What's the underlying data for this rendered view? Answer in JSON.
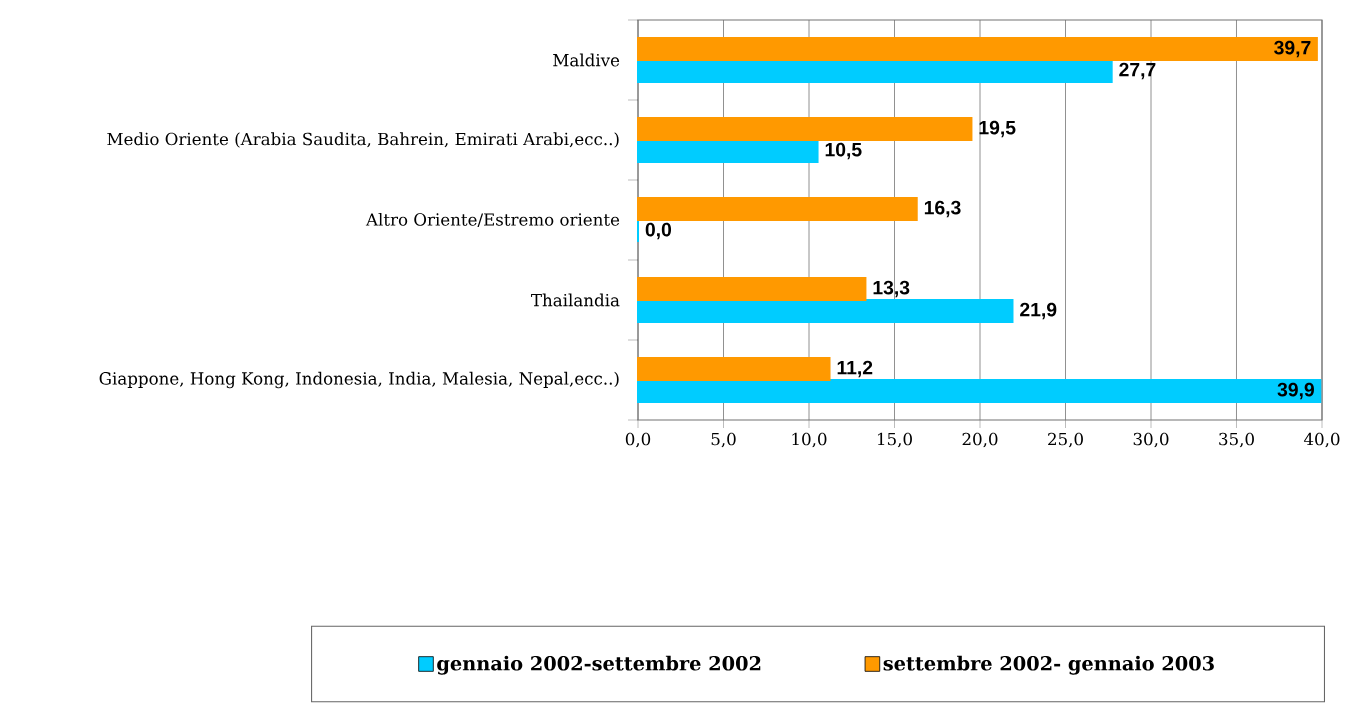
{
  "chart_data": {
    "type": "bar",
    "orientation": "horizontal",
    "categories": [
      "Maldive",
      "Medio Oriente (Arabia Saudita, Bahrein, Emirati Arabi,ecc..)",
      "Altro Oriente/Estremo oriente",
      "Thailandia",
      "Giappone, Hong Kong, Indonesia, India, Malesia, Nepal,ecc..)"
    ],
    "series": [
      {
        "name": "gennaio 2002-settembre 2002",
        "color": "#00ccff",
        "values": [
          27.7,
          10.5,
          0.0,
          21.9,
          39.9
        ],
        "value_labels": [
          "27,7",
          "10,5",
          "0,0",
          "21,9",
          "39,9"
        ]
      },
      {
        "name": "settembre 2002- gennaio 2003",
        "color": "#ff9900",
        "values": [
          39.7,
          19.5,
          16.3,
          13.3,
          11.2
        ],
        "value_labels": [
          "39,7",
          "19,5",
          "16,3",
          "13,3",
          "11,2"
        ]
      }
    ],
    "xlim": [
      0,
      40
    ],
    "xticks": [
      {
        "value": 0,
        "label": "0,0"
      },
      {
        "value": 5,
        "label": "5,0"
      },
      {
        "value": 10,
        "label": "10,0"
      },
      {
        "value": 15,
        "label": "15,0"
      },
      {
        "value": 20,
        "label": "20,0"
      },
      {
        "value": 25,
        "label": "25,0"
      },
      {
        "value": 30,
        "label": "30,0"
      },
      {
        "value": 35,
        "label": "35,0"
      },
      {
        "value": 40,
        "label": "40,0"
      }
    ],
    "grid": "x",
    "legend": "bottom"
  }
}
